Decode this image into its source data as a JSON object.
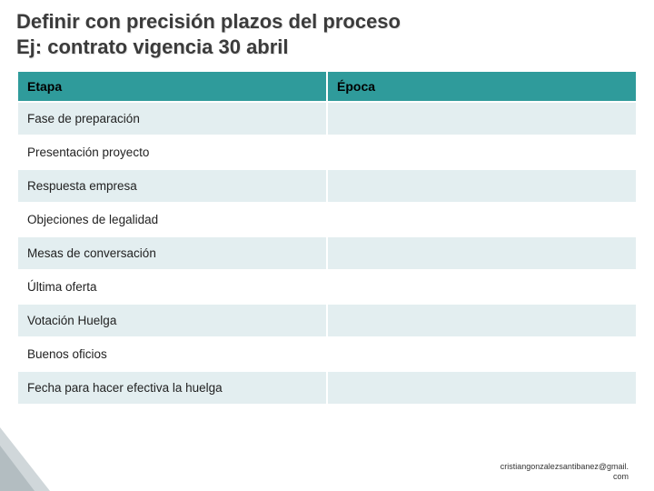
{
  "title_line1": "Definir con precisión plazos del proceso",
  "title_line2": "Ej: contrato vigencia 30 abril",
  "table": {
    "header_bg": "#2f9b9b",
    "odd_row_bg": "#e3eef0",
    "even_row_bg": "#ffffff",
    "columns": [
      "Etapa",
      "Época"
    ],
    "rows": [
      {
        "etapa": "Fase de preparación",
        "epoca": ""
      },
      {
        "etapa": "Presentación proyecto",
        "epoca": ""
      },
      {
        "etapa": "Respuesta empresa",
        "epoca": ""
      },
      {
        "etapa": "Objeciones de legalidad",
        "epoca": ""
      },
      {
        "etapa": "Mesas de conversación",
        "epoca": ""
      },
      {
        "etapa": "Última oferta",
        "epoca": ""
      },
      {
        "etapa": "Votación Huelga",
        "epoca": ""
      },
      {
        "etapa": "Buenos oficios",
        "epoca": ""
      },
      {
        "etapa": "Fecha para hacer efectiva la huelga",
        "epoca": ""
      }
    ]
  },
  "footer_line1": "cristiangonzalezsantibanez@gmail.",
  "footer_line2": "com"
}
